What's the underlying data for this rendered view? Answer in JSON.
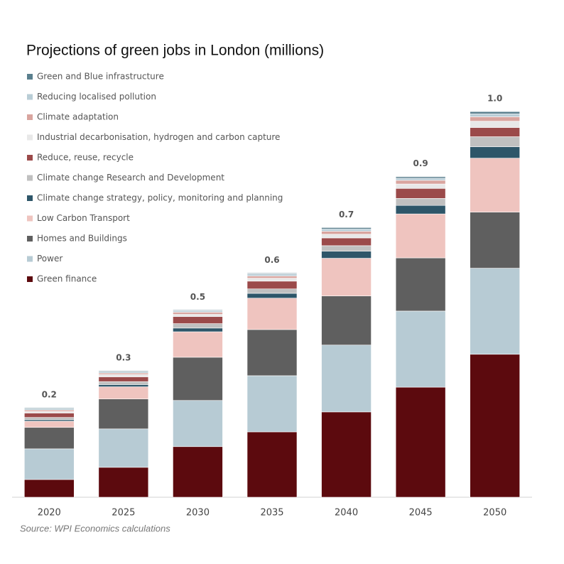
{
  "chart_data": {
    "type": "stacked_bar",
    "title": "Projections of green jobs in London (millions)",
    "source": "Source: WPI Economics calculations",
    "categories": [
      "2020",
      "2025",
      "2030",
      "2035",
      "2040",
      "2045",
      "2050"
    ],
    "totals": {
      "values": [
        0.2,
        0.3,
        0.5,
        0.6,
        0.7,
        0.9,
        1.0
      ],
      "value_labels": [
        "0.2",
        "0.3",
        "0.5",
        "0.6",
        "0.7",
        "0.9",
        "1.0"
      ]
    },
    "series": [
      {
        "name": "Green finance",
        "color": "#5c0a0e",
        "values": [
          0.048,
          0.081,
          0.137,
          0.177,
          0.231,
          0.298,
          0.387
        ]
      },
      {
        "name": "Power",
        "color": "#b7cbd4",
        "values": [
          0.083,
          0.104,
          0.125,
          0.152,
          0.181,
          0.206,
          0.233
        ]
      },
      {
        "name": "Homes and Buildings",
        "color": "#5f5f5f",
        "values": [
          0.058,
          0.081,
          0.117,
          0.125,
          0.133,
          0.144,
          0.152
        ]
      },
      {
        "name": "Low Carbon Transport",
        "color": "#efc4bf",
        "values": [
          0.017,
          0.033,
          0.069,
          0.085,
          0.102,
          0.119,
          0.146
        ]
      },
      {
        "name": "Climate change strategy, policy, monitoring and planning",
        "color": "#2e5669",
        "values": [
          0.004,
          0.006,
          0.01,
          0.013,
          0.019,
          0.023,
          0.031
        ]
      },
      {
        "name": "Climate change Research and Development",
        "color": "#c0c0c0",
        "values": [
          0.006,
          0.008,
          0.012,
          0.012,
          0.015,
          0.019,
          0.027
        ]
      },
      {
        "name": "Reduce, reuse, recycle",
        "color": "#9b4a4a",
        "values": [
          0.012,
          0.013,
          0.019,
          0.021,
          0.021,
          0.027,
          0.025
        ]
      },
      {
        "name": "Industrial decarbonisation, hydrogen and carbon capture",
        "color": "#e8e8e8",
        "values": [
          0.004,
          0.006,
          0.006,
          0.008,
          0.01,
          0.012,
          0.017
        ]
      },
      {
        "name": "Climate adaptation",
        "color": "#d9a59f",
        "values": [
          0.004,
          0.004,
          0.006,
          0.006,
          0.008,
          0.01,
          0.012
        ]
      },
      {
        "name": "Reducing localised pollution",
        "color": "#b9cdd6",
        "values": [
          0.004,
          0.004,
          0.004,
          0.006,
          0.006,
          0.006,
          0.008
        ]
      },
      {
        "name": "Green and Blue infrastructure",
        "color": "#5a7f8e",
        "values": [
          0.002,
          0.002,
          0.002,
          0.002,
          0.004,
          0.004,
          0.006
        ]
      }
    ]
  }
}
